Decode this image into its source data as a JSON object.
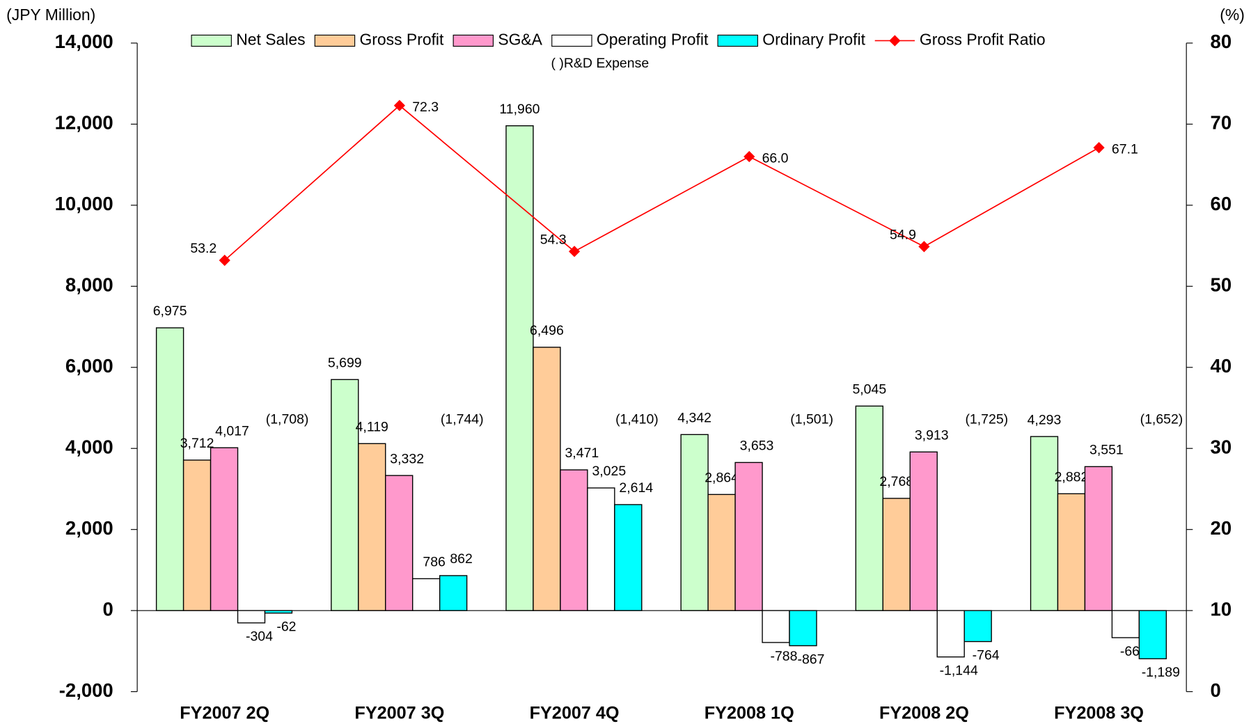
{
  "chart_data": {
    "type": "bar",
    "y_label": "(JPY Million)",
    "y2_label": "(%)",
    "categories": [
      "FY2007 2Q",
      "FY2007 3Q",
      "FY2007 4Q",
      "FY2008 1Q",
      "FY2008 2Q",
      "FY2008 3Q"
    ],
    "series": [
      {
        "name": "Net Sales",
        "color": "#ccffcc",
        "values": [
          6975,
          5699,
          11960,
          4342,
          5045,
          4293
        ],
        "value_labels": [
          "6,975",
          "5,699",
          "11,960",
          "4,342",
          "5,045",
          "4,293"
        ]
      },
      {
        "name": "Gross Profit",
        "color": "#ffcc99",
        "values": [
          3712,
          4119,
          6496,
          2864,
          2768,
          2882
        ],
        "value_labels": [
          "3,712",
          "4,119",
          "6,496",
          "2,864",
          "2,768",
          "2,882"
        ]
      },
      {
        "name": "SG&A",
        "color": "#ff99cc",
        "values": [
          4017,
          3332,
          3471,
          3653,
          3913,
          3551
        ],
        "value_labels": [
          "4,017",
          "3,332",
          "3,471",
          "3,653",
          "3,913",
          "3,551"
        ]
      },
      {
        "name": "Operating Profit",
        "color": "#ffffff",
        "values": [
          -304,
          786,
          3025,
          -788,
          -1144,
          -669
        ],
        "value_labels": [
          "-304",
          "786",
          "3,025",
          "-788",
          "-1,144",
          "-669"
        ]
      },
      {
        "name": "Ordinary Profit",
        "color": "#00ffff",
        "values": [
          -62,
          862,
          2614,
          -867,
          -764,
          -1189
        ],
        "value_labels": [
          "-62",
          "862",
          "2,614",
          "-867",
          "-764",
          "-1,189"
        ]
      },
      {
        "name": "Gross Profit Ratio",
        "color": "#ff0000",
        "type": "line",
        "axis": "y2",
        "values": [
          53.2,
          72.3,
          54.3,
          66.0,
          54.9,
          67.1
        ],
        "value_labels": [
          "53.2",
          "72.3",
          "54.3",
          "66.0",
          "54.9",
          "67.1"
        ]
      }
    ],
    "rd_expense": {
      "name": "(  )R&D Expense",
      "values": [
        1708,
        1744,
        1410,
        1501,
        1725,
        1652
      ],
      "value_labels": [
        "(1,708)",
        "(1,744)",
        "(1,410)",
        "(1,501)",
        "(1,725)",
        "(1,652)"
      ]
    },
    "ylim": [
      -2000,
      14000
    ],
    "yticks": [
      {
        "value": -2000,
        "label": "-2,000"
      },
      0,
      {
        "value": 2000,
        "label": "2,000"
      },
      {
        "value": 4000,
        "label": "4,000"
      },
      {
        "value": 6000,
        "label": "6,000"
      },
      {
        "value": 8000,
        "label": "8,000"
      },
      {
        "value": 10000,
        "label": "10,000"
      },
      {
        "value": 12000,
        "label": "12,000"
      },
      {
        "value": 14000,
        "label": "14,000"
      }
    ],
    "y2lim": [
      0,
      80
    ],
    "y2ticks": [
      0,
      10,
      20,
      30,
      40,
      50,
      60,
      70,
      80
    ],
    "legend": "top"
  }
}
